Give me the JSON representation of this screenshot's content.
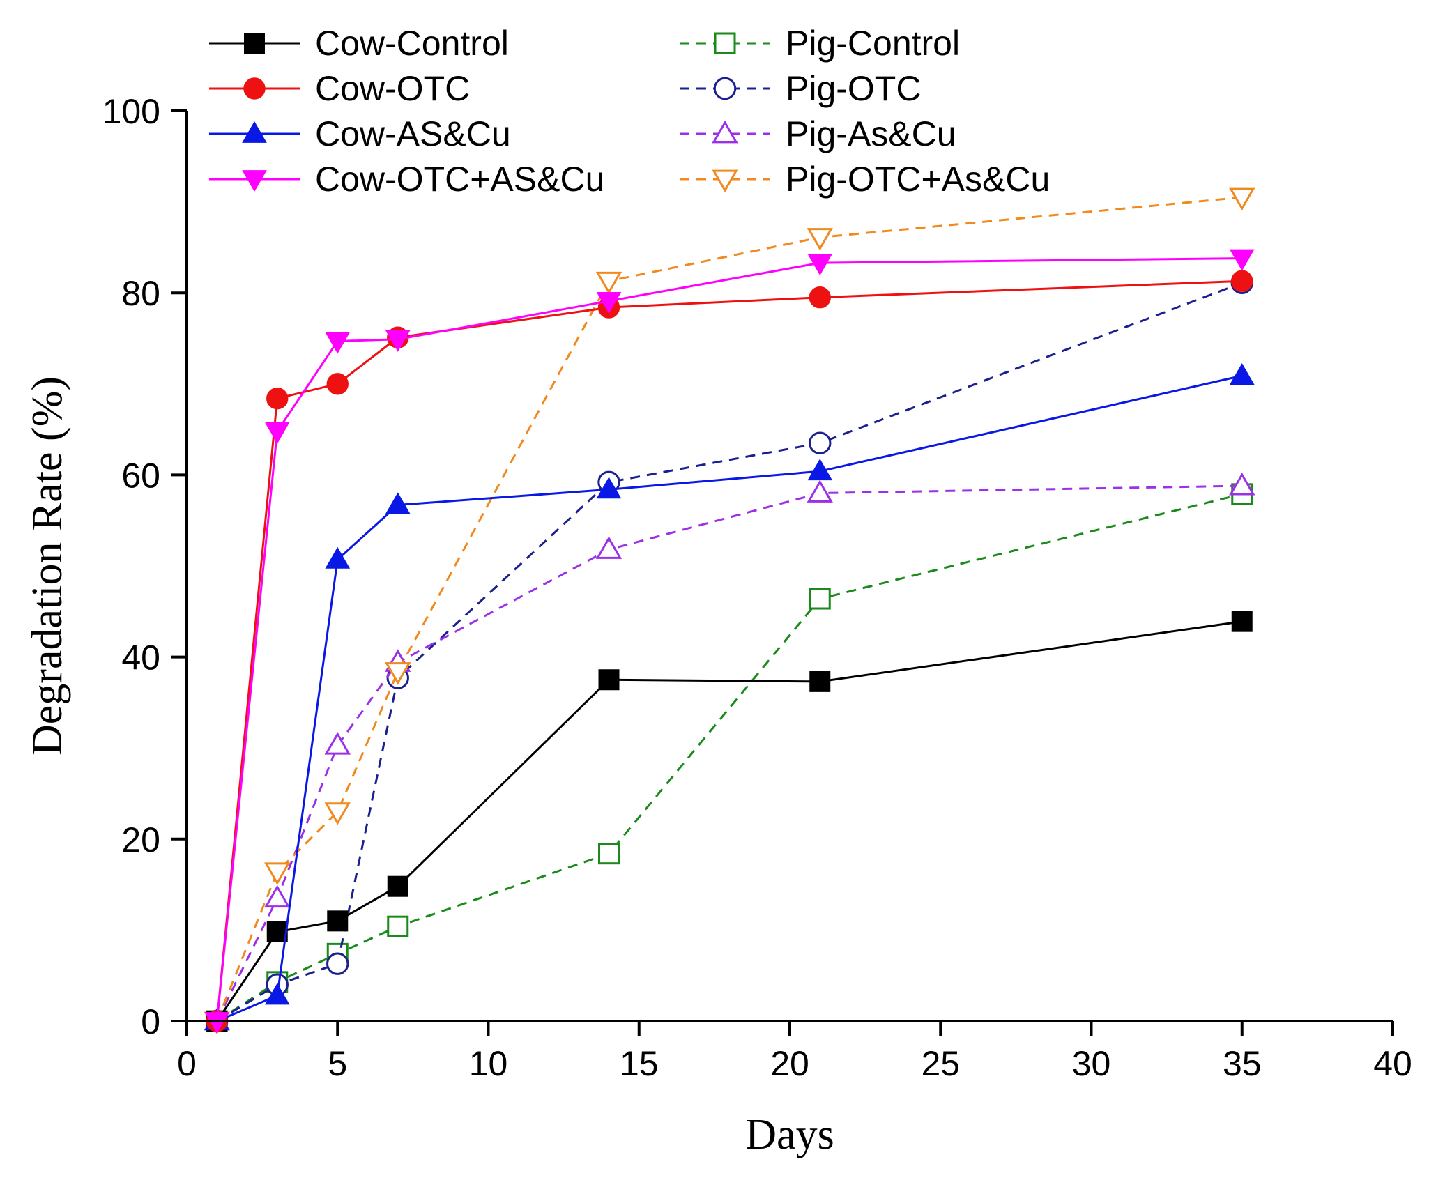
{
  "chart_data": {
    "type": "line",
    "title": "",
    "xlabel": "Days",
    "ylabel": "Degradation Rate (%)",
    "xlim": [
      0,
      40
    ],
    "ylim": [
      0,
      100
    ],
    "xticks": [
      0,
      5,
      10,
      15,
      20,
      25,
      30,
      35,
      40
    ],
    "yticks": [
      0,
      20,
      40,
      60,
      80,
      100
    ],
    "grid": false,
    "legend_position": "top-left",
    "x": [
      1,
      3,
      5,
      7,
      14,
      21,
      35
    ],
    "series": [
      {
        "name": "Cow-Control",
        "color": "#000000",
        "marker": "square",
        "filled": true,
        "dashed": false,
        "values": [
          0,
          9.8,
          11,
          14.8,
          37.5,
          37.3,
          43.9
        ]
      },
      {
        "name": "Cow-OTC",
        "color": "#ee1111",
        "marker": "circle",
        "filled": true,
        "dashed": false,
        "values": [
          0,
          68.4,
          70,
          75.1,
          78.4,
          79.5,
          81.3
        ]
      },
      {
        "name": "Cow-AS&Cu",
        "color": "#0a18e6",
        "marker": "triangle-up",
        "filled": true,
        "dashed": false,
        "values": [
          0,
          2.8,
          50.7,
          56.7,
          58.4,
          60.4,
          70.9
        ]
      },
      {
        "name": "Cow-OTC+AS&Cu",
        "color": "#ff00ff",
        "marker": "triangle-down",
        "filled": true,
        "dashed": false,
        "values": [
          0,
          64.8,
          74.7,
          74.9,
          79.1,
          83.3,
          83.8
        ]
      },
      {
        "name": "Pig-Control",
        "color": "#1a8a1a",
        "marker": "square",
        "filled": false,
        "dashed": true,
        "values": [
          0,
          4.3,
          7.4,
          10.4,
          18.4,
          46.4,
          57.9
        ]
      },
      {
        "name": "Pig-OTC",
        "color": "#1c1f8f",
        "marker": "circle",
        "filled": false,
        "dashed": true,
        "values": [
          0,
          4,
          6.3,
          37.7,
          59.2,
          63.5,
          81.1
        ]
      },
      {
        "name": "Pig-As&Cu",
        "color": "#9b30e8",
        "marker": "triangle-up",
        "filled": false,
        "dashed": true,
        "values": [
          0,
          13.5,
          30.3,
          39.4,
          51.8,
          58,
          58.8
        ]
      },
      {
        "name": "Pig-OTC+As&Cu",
        "color": "#f08a1f",
        "marker": "triangle-down",
        "filled": false,
        "dashed": true,
        "values": [
          0,
          16.4,
          23,
          38.4,
          81.3,
          86.1,
          90.5
        ]
      }
    ]
  }
}
